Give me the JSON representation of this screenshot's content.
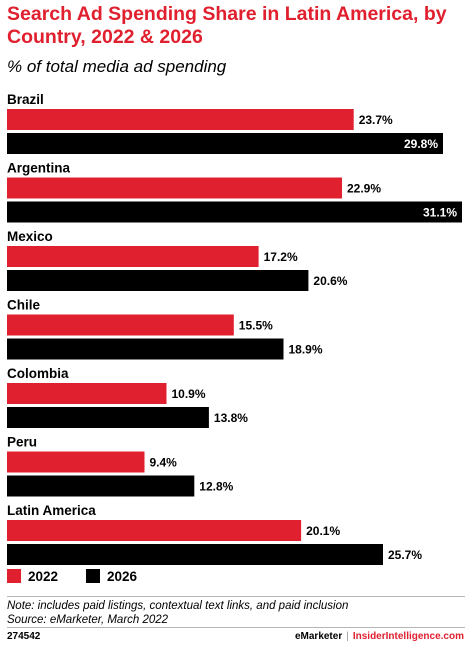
{
  "chart_data": {
    "type": "bar",
    "orientation": "horizontal",
    "title": "Search Ad Spending Share in Latin America, by Country, 2022 & 2026",
    "subtitle": "% of total media ad spending",
    "categories": [
      "Brazil",
      "Argentina",
      "Mexico",
      "Chile",
      "Colombia",
      "Peru",
      "Latin America"
    ],
    "series": [
      {
        "name": "2022",
        "color": "#e0202e",
        "values": [
          23.7,
          22.9,
          17.2,
          15.5,
          10.9,
          9.4,
          20.1
        ],
        "labels": [
          "23.7%",
          "22.9%",
          "17.2%",
          "15.5%",
          "10.9%",
          "9.4%",
          "20.1%"
        ]
      },
      {
        "name": "2026",
        "color": "#000000",
        "values": [
          29.8,
          31.1,
          20.6,
          18.9,
          13.8,
          12.8,
          25.7
        ],
        "labels": [
          "29.8%",
          "31.1%",
          "20.6%",
          "18.9%",
          "13.8%",
          "12.8%",
          "25.7%"
        ]
      }
    ],
    "xlim": [
      0,
      31.1
    ],
    "legend_position": "bottom-left",
    "grid": false
  },
  "footer": {
    "note": "Note: includes paid listings, contextual text links, and paid inclusion",
    "source": "Source: eMarketer, March 2022",
    "code": "274542",
    "brand_left": "eMarketer",
    "brand_sep": "|",
    "brand_right": "InsiderIntelligence.com"
  }
}
